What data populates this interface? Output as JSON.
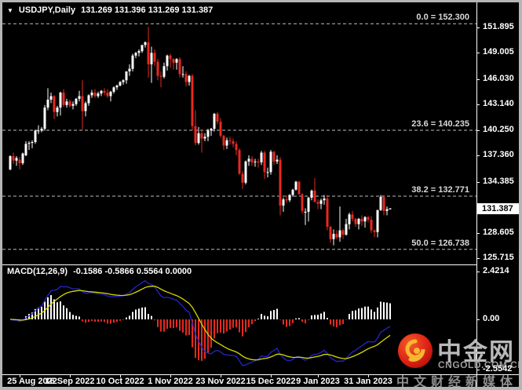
{
  "window": {
    "dropdown_icon": "▼",
    "title_symbol": "USDJPY,Daily",
    "title_ohlc": "131.269 131.396 131.269 131.387"
  },
  "chart_data": {
    "type": "candlestick",
    "symbol": "USDJPY",
    "timeframe": "Daily",
    "title": "USDJPY,Daily  131.269 131.396 131.269 131.387",
    "current_price_label": "131.387",
    "price_axis": [
      "151.895",
      "149.005",
      "146.030",
      "143.140",
      "140.250",
      "137.360",
      "134.385",
      "128.605",
      "125.715"
    ],
    "fib_levels": [
      {
        "label": "0.0 = 152.300",
        "price": 152.3
      },
      {
        "label": "23.6 = 140.235",
        "price": 140.235
      },
      {
        "label": "38.2 = 132.771",
        "price": 132.771
      },
      {
        "label": "50.0 = 126.738",
        "price": 126.738
      }
    ],
    "x_axis": [
      {
        "label": "25 Aug 2022",
        "bar": 3
      },
      {
        "label": "16 Sep 2022",
        "bar": 19
      },
      {
        "label": "10 Oct 2022",
        "bar": 35
      },
      {
        "label": "1 Nov 2022",
        "bar": 51
      },
      {
        "label": "23 Nov 2022",
        "bar": 67
      },
      {
        "label": "15 Dec 2022",
        "bar": 83
      },
      {
        "label": "9 Jan 2023",
        "bar": 98
      },
      {
        "label": "31 Jan 2023",
        "bar": 114
      }
    ],
    "candles": [
      [
        135.8,
        137.4,
        135.7,
        137.3
      ],
      [
        137.3,
        137.7,
        136.4,
        136.8
      ],
      [
        136.8,
        137.3,
        136.2,
        137.1
      ],
      [
        136.9,
        137.2,
        135.8,
        136.5
      ],
      [
        136.5,
        137.7,
        136.3,
        137.6
      ],
      [
        137.4,
        139.0,
        137.3,
        138.7
      ],
      [
        138.7,
        139.0,
        138.0,
        138.8
      ],
      [
        138.8,
        139.1,
        138.2,
        138.9
      ],
      [
        138.9,
        140.3,
        138.7,
        140.2
      ],
      [
        140.2,
        140.8,
        139.8,
        140.2
      ],
      [
        140.2,
        140.6,
        140.0,
        140.4
      ],
      [
        140.4,
        143.1,
        140.2,
        142.8
      ],
      [
        142.8,
        145.0,
        142.5,
        143.7
      ],
      [
        143.7,
        144.5,
        143.3,
        144.1
      ],
      [
        144.1,
        144.2,
        141.5,
        142.3
      ],
      [
        142.3,
        143.0,
        141.8,
        142.8
      ],
      [
        142.8,
        144.6,
        141.9,
        144.5
      ],
      [
        144.5,
        144.9,
        142.9,
        143.1
      ],
      [
        143.1,
        143.8,
        142.8,
        143.5
      ],
      [
        143.5,
        143.7,
        142.8,
        143.0
      ],
      [
        143.0,
        143.5,
        142.6,
        143.2
      ],
      [
        143.2,
        143.9,
        143.0,
        143.8
      ],
      [
        143.8,
        144.7,
        143.5,
        144.1
      ],
      [
        144.1,
        145.9,
        140.3,
        142.4
      ],
      [
        142.4,
        143.5,
        141.8,
        143.3
      ],
      [
        143.3,
        144.3,
        143.0,
        144.2
      ],
      [
        144.2,
        144.8,
        143.9,
        144.5
      ],
      [
        144.5,
        144.9,
        143.9,
        144.1
      ],
      [
        144.1,
        144.6,
        143.9,
        144.4
      ],
      [
        144.4,
        144.8,
        144.1,
        144.7
      ],
      [
        144.7,
        145.0,
        144.2,
        144.5
      ],
      [
        144.5,
        144.9,
        143.9,
        144.1
      ],
      [
        144.1,
        144.7,
        143.5,
        144.6
      ],
      [
        144.6,
        145.2,
        144.4,
        145.1
      ],
      [
        145.1,
        145.4,
        144.8,
        145.3
      ],
      [
        145.3,
        145.8,
        145.2,
        145.7
      ],
      [
        145.7,
        146.0,
        145.4,
        145.9
      ],
      [
        145.9,
        146.9,
        145.5,
        146.9
      ],
      [
        146.9,
        147.7,
        146.4,
        147.2
      ],
      [
        147.2,
        148.9,
        146.9,
        148.7
      ],
      [
        148.7,
        149.1,
        148.4,
        149.0
      ],
      [
        149.0,
        149.4,
        148.6,
        149.2
      ],
      [
        149.2,
        149.9,
        149.0,
        149.9
      ],
      [
        149.9,
        150.3,
        149.6,
        150.2
      ],
      [
        150.2,
        151.95,
        146.2,
        147.7
      ],
      [
        147.7,
        149.7,
        145.6,
        149.0
      ],
      [
        149.0,
        149.4,
        147.5,
        148.0
      ],
      [
        148.0,
        148.3,
        145.9,
        146.4
      ],
      [
        146.4,
        146.9,
        145.1,
        146.3
      ],
      [
        146.3,
        147.9,
        146.1,
        147.5
      ],
      [
        147.5,
        148.8,
        147.0,
        148.7
      ],
      [
        148.7,
        148.9,
        147.3,
        148.3
      ],
      [
        148.3,
        148.4,
        147.1,
        147.9
      ],
      [
        147.9,
        148.4,
        147.1,
        148.3
      ],
      [
        148.3,
        148.5,
        146.2,
        146.6
      ],
      [
        146.6,
        147.5,
        146.2,
        146.6
      ],
      [
        146.6,
        146.9,
        145.2,
        145.7
      ],
      [
        145.7,
        146.5,
        145.3,
        146.4
      ],
      [
        146.4,
        146.6,
        140.2,
        140.7
      ],
      [
        140.7,
        142.5,
        138.5,
        138.8
      ],
      [
        138.8,
        140.6,
        138.6,
        139.9
      ],
      [
        139.9,
        140.3,
        137.7,
        139.3
      ],
      [
        139.3,
        139.9,
        139.0,
        139.5
      ],
      [
        139.5,
        140.4,
        139.0,
        140.2
      ],
      [
        140.2,
        140.5,
        139.6,
        140.4
      ],
      [
        140.4,
        142.2,
        140.1,
        142.1
      ],
      [
        142.1,
        142.3,
        140.9,
        141.2
      ],
      [
        141.2,
        141.6,
        139.4,
        139.6
      ],
      [
        139.6,
        139.7,
        138.0,
        138.5
      ],
      [
        138.5,
        139.4,
        138.1,
        139.1
      ],
      [
        139.1,
        139.5,
        138.6,
        139.0
      ],
      [
        139.0,
        139.3,
        138.3,
        138.7
      ],
      [
        138.7,
        139.0,
        137.4,
        138.0
      ],
      [
        138.0,
        138.2,
        135.2,
        135.3
      ],
      [
        135.3,
        135.6,
        133.6,
        134.3
      ],
      [
        134.3,
        136.8,
        134.1,
        136.7
      ],
      [
        136.7,
        137.4,
        136.2,
        137.0
      ],
      [
        137.0,
        137.3,
        136.2,
        136.6
      ],
      [
        136.6,
        137.0,
        136.1,
        136.7
      ],
      [
        136.7,
        137.0,
        136.0,
        136.6
      ],
      [
        136.6,
        137.9,
        136.3,
        137.7
      ],
      [
        137.7,
        137.9,
        134.7,
        135.5
      ],
      [
        135.5,
        136.0,
        134.9,
        135.5
      ],
      [
        135.5,
        138.0,
        135.2,
        137.8
      ],
      [
        137.8,
        137.9,
        136.3,
        136.7
      ],
      [
        136.7,
        137.4,
        136.4,
        136.9
      ],
      [
        136.9,
        137.2,
        130.6,
        131.7
      ],
      [
        131.7,
        132.6,
        131.0,
        132.4
      ],
      [
        132.4,
        132.9,
        132.0,
        132.3
      ],
      [
        132.3,
        133.0,
        132.1,
        132.9
      ],
      [
        132.9,
        133.6,
        132.7,
        133.5
      ],
      [
        133.5,
        134.5,
        133.4,
        134.4
      ],
      [
        134.4,
        134.5,
        132.9,
        133.0
      ],
      [
        133.0,
        133.1,
        130.8,
        131.1
      ],
      [
        130.9,
        131.4,
        129.5,
        131.0
      ],
      [
        131.0,
        132.7,
        129.9,
        132.6
      ],
      [
        132.6,
        133.5,
        132.3,
        133.4
      ],
      [
        133.4,
        134.8,
        132.1,
        132.1
      ],
      [
        132.1,
        132.4,
        131.3,
        131.9
      ],
      [
        131.9,
        132.5,
        131.3,
        132.3
      ],
      [
        132.3,
        132.9,
        131.8,
        132.5
      ],
      [
        132.5,
        132.9,
        128.9,
        129.3
      ],
      [
        129.3,
        129.4,
        127.5,
        127.9
      ],
      [
        127.9,
        129.0,
        127.2,
        128.5
      ],
      [
        128.5,
        128.9,
        127.9,
        128.1
      ],
      [
        128.1,
        131.6,
        127.6,
        128.9
      ],
      [
        128.9,
        129.1,
        127.9,
        128.4
      ],
      [
        128.4,
        130.2,
        128.3,
        129.6
      ],
      [
        129.6,
        130.9,
        129.0,
        130.7
      ],
      [
        130.7,
        131.1,
        129.9,
        130.2
      ],
      [
        130.2,
        130.3,
        129.3,
        129.6
      ],
      [
        129.6,
        130.3,
        129.0,
        130.2
      ],
      [
        130.2,
        130.6,
        129.4,
        129.9
      ],
      [
        129.9,
        130.5,
        129.2,
        130.4
      ],
      [
        130.4,
        130.5,
        129.8,
        130.1
      ],
      [
        130.1,
        130.5,
        128.6,
        128.9
      ],
      [
        128.9,
        129.0,
        128.1,
        128.7
      ],
      [
        128.7,
        131.2,
        128.1,
        131.2
      ],
      [
        131.2,
        132.9,
        131.1,
        132.7
      ],
      [
        132.7,
        132.9,
        130.6,
        131.1
      ],
      [
        131.1,
        131.6,
        130.6,
        131.3
      ],
      [
        131.269,
        131.396,
        131.269,
        131.387
      ]
    ],
    "macd": {
      "name": "MACD(12,26,9)",
      "values": "-0.1586 -0.5866 0.5564 0.0000",
      "axis": [
        "2.4214",
        "0.00",
        "-2.5542"
      ],
      "params": {
        "fast": 12,
        "slow": 26,
        "signal": 9
      }
    }
  },
  "watermark": {
    "brand": "中金网",
    "domain": "CNGOLD.COM.CN",
    "tagline": "中文财经新媒体"
  },
  "colors": {
    "up": "#ffffff",
    "down": "#e8291f",
    "macd_line": "#2424cc",
    "signal_line": "#d8d800",
    "hist_up": "#ffffff",
    "hist_down": "#e8291f",
    "fib_line": "#bdbdbd",
    "axis_text": "#ffffff",
    "badge_bg": "#ffffff"
  }
}
